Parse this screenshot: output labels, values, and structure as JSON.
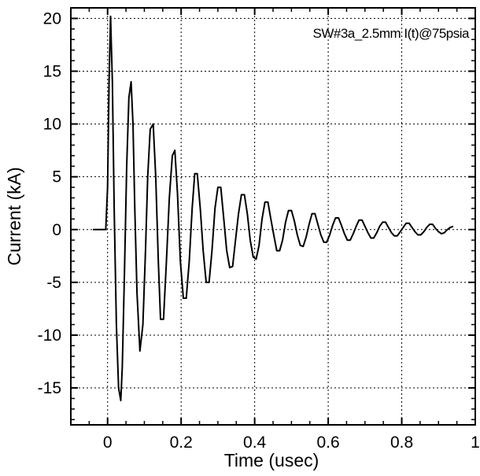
{
  "chart_data": {
    "type": "line",
    "title": "",
    "annotation": "SW#3a_2.5mm I(t)@75psia",
    "xlabel": "Time  (usec)",
    "ylabel": "Current (kA)",
    "xlim": [
      -0.1,
      1.0
    ],
    "ylim": [
      -18.5,
      21
    ],
    "xticks": [
      0,
      0.2,
      0.4,
      0.6,
      0.8,
      1
    ],
    "xtick_labels": [
      "0",
      "0.2",
      "0.4",
      "0.6",
      "0.8",
      "1"
    ],
    "yticks": [
      -15,
      -10,
      -5,
      0,
      5,
      10,
      15,
      20
    ],
    "ytick_labels": [
      "-15",
      "-10",
      "-5",
      "0",
      "5",
      "10",
      "15",
      "20"
    ],
    "grid": "dotted",
    "series": [
      {
        "x": [
          -0.04,
          -0.005,
          0.0,
          0.004,
          0.008,
          0.013,
          0.018,
          0.024,
          0.03,
          0.036,
          0.04,
          0.046,
          0.052,
          0.058,
          0.064,
          0.069,
          0.074,
          0.08,
          0.088,
          0.096,
          0.103,
          0.109,
          0.116,
          0.124,
          0.131,
          0.138,
          0.144,
          0.152,
          0.16,
          0.168,
          0.176,
          0.183,
          0.19,
          0.198,
          0.206,
          0.214,
          0.222,
          0.23,
          0.237,
          0.244,
          0.252,
          0.26,
          0.268,
          0.276,
          0.284,
          0.292,
          0.3,
          0.308,
          0.316,
          0.324,
          0.332,
          0.34,
          0.348,
          0.356,
          0.364,
          0.372,
          0.38,
          0.388,
          0.396,
          0.404,
          0.412,
          0.42,
          0.428,
          0.436,
          0.444,
          0.452,
          0.46,
          0.468,
          0.476,
          0.484,
          0.492,
          0.5,
          0.508,
          0.516,
          0.524,
          0.532,
          0.54,
          0.548,
          0.556,
          0.564,
          0.572,
          0.58,
          0.588,
          0.596,
          0.604,
          0.612,
          0.62,
          0.628,
          0.636,
          0.644,
          0.652,
          0.66,
          0.668,
          0.676,
          0.684,
          0.692,
          0.7,
          0.708,
          0.716,
          0.724,
          0.732,
          0.74,
          0.748,
          0.756,
          0.764,
          0.772,
          0.78,
          0.788,
          0.796,
          0.804,
          0.812,
          0.82,
          0.828,
          0.836,
          0.844,
          0.852,
          0.86,
          0.868,
          0.876,
          0.884,
          0.892,
          0.9,
          0.908,
          0.916,
          0.924,
          0.932,
          0.94
        ],
        "y": [
          0.0,
          0.0,
          4.0,
          14.0,
          20.2,
          14.0,
          2.0,
          -9.0,
          -15.0,
          -16.2,
          -13.0,
          -4.0,
          6.0,
          12.5,
          14.0,
          10.0,
          2.0,
          -6.0,
          -11.5,
          -9.0,
          -2.0,
          5.0,
          9.5,
          10.0,
          5.0,
          -3.0,
          -8.5,
          -8.5,
          -3.0,
          3.0,
          7.0,
          7.5,
          3.5,
          -3.0,
          -6.5,
          -6.5,
          -3.0,
          2.0,
          5.3,
          5.3,
          2.0,
          -2.0,
          -5.0,
          -5.0,
          -2.0,
          2.0,
          4.0,
          4.0,
          1.0,
          -2.0,
          -3.6,
          -3.5,
          -1.0,
          1.5,
          3.3,
          3.3,
          1.5,
          -1.0,
          -2.6,
          -2.8,
          -1.5,
          1.0,
          2.6,
          2.6,
          1.0,
          -0.5,
          -2.0,
          -2.0,
          -1.0,
          0.7,
          1.8,
          1.8,
          0.8,
          -0.5,
          -1.5,
          -1.6,
          -0.7,
          0.5,
          1.5,
          1.5,
          0.5,
          -0.5,
          -1.2,
          -1.2,
          -0.5,
          0.4,
          1.1,
          1.1,
          0.4,
          -0.4,
          -1.0,
          -1.0,
          -0.4,
          0.3,
          0.9,
          0.9,
          0.3,
          -0.3,
          -0.8,
          -0.8,
          -0.3,
          0.3,
          0.7,
          0.7,
          0.2,
          -0.3,
          -0.6,
          -0.6,
          -0.2,
          0.2,
          0.6,
          0.6,
          0.2,
          -0.2,
          -0.5,
          -0.5,
          -0.2,
          0.2,
          0.5,
          0.5,
          0.1,
          -0.2,
          -0.4,
          -0.3,
          0.0,
          0.2,
          0.3
        ]
      }
    ]
  },
  "colors": {
    "line": "#000000",
    "background": "#ffffff",
    "grid": "#000000"
  }
}
